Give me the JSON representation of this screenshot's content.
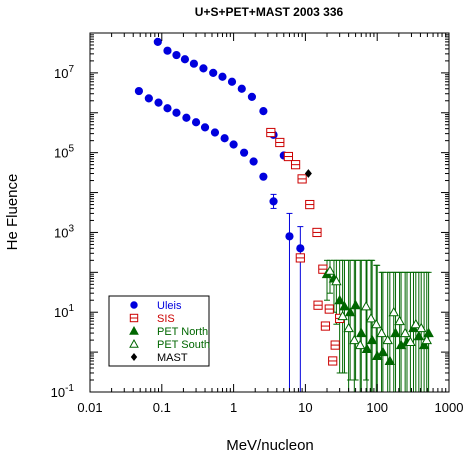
{
  "chart_data": {
    "type": "scatter",
    "title": "U+S+PET+MAST 2003 336",
    "xlabel": "MeV/nucleon",
    "ylabel": "He Fluence",
    "xscale": "log",
    "yscale": "log",
    "xlim": [
      0.01,
      1000
    ],
    "ylim": [
      0.1,
      100000000
    ],
    "xticks": [
      {
        "label": "0.01"
      },
      {
        "label": "0.1"
      },
      {
        "label": "1"
      },
      {
        "label": "10"
      },
      {
        "label": "100"
      },
      {
        "label": "1000"
      }
    ],
    "yticks": [
      {
        "base": "10",
        "exp": "-1"
      },
      {
        "base": "10",
        "exp": "1"
      },
      {
        "base": "10",
        "exp": "3"
      },
      {
        "base": "10",
        "exp": "5"
      },
      {
        "base": "10",
        "exp": "7"
      }
    ],
    "legend_position": "bottom-left",
    "series": [
      {
        "name": "Uleis",
        "marker": "circle-filled",
        "color": "#0000dd",
        "points": [
          [
            0.088,
            60000000
          ],
          [
            0.12,
            36000000
          ],
          [
            0.16,
            28000000
          ],
          [
            0.21,
            22000000
          ],
          [
            0.28,
            17000000
          ],
          [
            0.38,
            13000000
          ],
          [
            0.52,
            10000000
          ],
          [
            0.7,
            8000000
          ],
          [
            0.95,
            6000000
          ],
          [
            1.3,
            4000000
          ],
          [
            1.8,
            2500000
          ],
          [
            2.6,
            1100000
          ],
          [
            3.6,
            280000
          ],
          [
            5.0,
            85000
          ],
          [
            0.048,
            3500000
          ],
          [
            0.066,
            2300000
          ],
          [
            0.09,
            1800000
          ],
          [
            0.12,
            1300000
          ],
          [
            0.16,
            1000000
          ],
          [
            0.22,
            750000
          ],
          [
            0.3,
            580000
          ],
          [
            0.4,
            430000
          ],
          [
            0.55,
            320000
          ],
          [
            0.75,
            230000
          ],
          [
            1.0,
            160000
          ],
          [
            1.4,
            100000
          ],
          [
            1.9,
            60000
          ],
          [
            2.6,
            25000
          ],
          [
            3.6,
            6000
          ],
          [
            6.0,
            800
          ],
          [
            8.5,
            400
          ]
        ],
        "error_bars": [
          {
            "x": 6.0,
            "low": 0.1,
            "high": 3000
          },
          {
            "x": 8.5,
            "low": 0.1,
            "high": 1400
          },
          {
            "x": 3.6,
            "low": 4000,
            "high": 9000
          }
        ]
      },
      {
        "name": "SIS",
        "marker": "square-open",
        "color": "#cc0000",
        "points": [
          [
            3.3,
            320000
          ],
          [
            4.4,
            180000
          ],
          [
            5.8,
            80000
          ],
          [
            7.3,
            50000
          ],
          [
            9.0,
            22000
          ],
          [
            11.5,
            5000
          ],
          [
            14.5,
            1000
          ],
          [
            17.5,
            120
          ],
          [
            21.5,
            12
          ],
          [
            26.0,
            1.5
          ],
          [
            30.0,
            7.0
          ],
          [
            15.0,
            15
          ],
          [
            19.0,
            4.5
          ],
          [
            24.0,
            0.6
          ],
          [
            8.5,
            230
          ]
        ]
      },
      {
        "name": "PET North",
        "marker": "triangle-filled",
        "color": "#006600",
        "points": [
          [
            20,
            90
          ],
          [
            25,
            70
          ],
          [
            30,
            20
          ],
          [
            35,
            14
          ],
          [
            42,
            10
          ],
          [
            50,
            15
          ],
          [
            60,
            3
          ],
          [
            72,
            1.2
          ],
          [
            85,
            2
          ],
          [
            100,
            0.8
          ],
          [
            120,
            1.0
          ],
          [
            150,
            0.6
          ],
          [
            180,
            3
          ],
          [
            215,
            1.5
          ],
          [
            260,
            1.8
          ],
          [
            320,
            4
          ],
          [
            380,
            2.5
          ],
          [
            450,
            1.5
          ],
          [
            520,
            3
          ]
        ],
        "error_bars": [
          {
            "x": 20,
            "low": 20,
            "high": 200
          },
          {
            "x": 25,
            "low": 10,
            "high": 200
          },
          {
            "x": 30,
            "low": 0.3,
            "high": 200
          },
          {
            "x": 35,
            "low": 0.3,
            "high": 200
          },
          {
            "x": 42,
            "low": 0.2,
            "high": 200
          },
          {
            "x": 50,
            "low": 0.2,
            "high": 200
          },
          {
            "x": 60,
            "low": 0.1,
            "high": 200
          },
          {
            "x": 72,
            "low": 0.1,
            "high": 200
          },
          {
            "x": 85,
            "low": 0.1,
            "high": 200
          },
          {
            "x": 100,
            "low": 0.1,
            "high": 150
          },
          {
            "x": 120,
            "low": 0.1,
            "high": 100
          },
          {
            "x": 150,
            "low": 0.1,
            "high": 100
          },
          {
            "x": 180,
            "low": 0.1,
            "high": 100
          },
          {
            "x": 215,
            "low": 0.1,
            "high": 100
          },
          {
            "x": 260,
            "low": 0.1,
            "high": 100
          },
          {
            "x": 320,
            "low": 0.1,
            "high": 100
          },
          {
            "x": 380,
            "low": 0.1,
            "high": 100
          },
          {
            "x": 450,
            "low": 0.1,
            "high": 100
          },
          {
            "x": 520,
            "low": 0.1,
            "high": 100
          }
        ]
      },
      {
        "name": "PET South",
        "marker": "triangle-open",
        "color": "#006600",
        "points": [
          [
            22,
            110
          ],
          [
            27,
            60
          ],
          [
            33,
            8
          ],
          [
            40,
            4
          ],
          [
            48,
            2
          ],
          [
            58,
            1.5
          ],
          [
            70,
            14
          ],
          [
            82,
            7
          ],
          [
            97,
            5
          ],
          [
            115,
            3
          ],
          [
            140,
            2
          ],
          [
            170,
            10
          ],
          [
            205,
            6
          ],
          [
            245,
            3
          ],
          [
            290,
            1.8
          ],
          [
            345,
            5
          ],
          [
            410,
            4
          ],
          [
            490,
            2
          ]
        ],
        "error_bars": [
          {
            "x": 22,
            "low": 30,
            "high": 200
          },
          {
            "x": 27,
            "low": 5,
            "high": 200
          },
          {
            "x": 33,
            "low": 0.3,
            "high": 200
          },
          {
            "x": 40,
            "low": 0.1,
            "high": 200
          },
          {
            "x": 48,
            "low": 0.1,
            "high": 200
          },
          {
            "x": 58,
            "low": 0.1,
            "high": 200
          },
          {
            "x": 70,
            "low": 0.2,
            "high": 200
          },
          {
            "x": 82,
            "low": 0.1,
            "high": 200
          },
          {
            "x": 97,
            "low": 0.1,
            "high": 150
          },
          {
            "x": 115,
            "low": 0.1,
            "high": 100
          },
          {
            "x": 140,
            "low": 0.1,
            "high": 100
          },
          {
            "x": 170,
            "low": 0.1,
            "high": 100
          },
          {
            "x": 205,
            "low": 0.1,
            "high": 100
          },
          {
            "x": 245,
            "low": 0.1,
            "high": 100
          },
          {
            "x": 290,
            "low": 0.1,
            "high": 100
          },
          {
            "x": 345,
            "low": 0.1,
            "high": 100
          },
          {
            "x": 410,
            "low": 0.1,
            "high": 100
          },
          {
            "x": 490,
            "low": 0.1,
            "high": 100
          }
        ]
      },
      {
        "name": "MAST",
        "marker": "diamond-filled",
        "color": "#000000",
        "points": [
          [
            11,
            30000
          ]
        ]
      }
    ]
  }
}
